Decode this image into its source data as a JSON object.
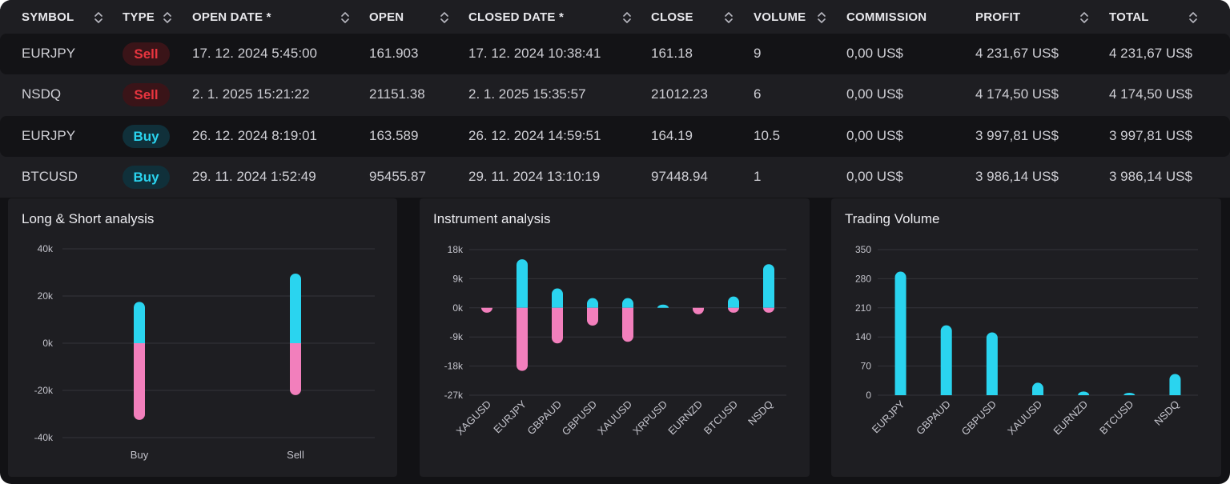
{
  "table": {
    "columns": [
      {
        "label": "SYMBOL"
      },
      {
        "label": "TYPE"
      },
      {
        "label": "OPEN DATE *"
      },
      {
        "label": "OPEN"
      },
      {
        "label": "CLOSED DATE *"
      },
      {
        "label": "CLOSE"
      },
      {
        "label": "VOLUME"
      },
      {
        "label": "COMMISSION"
      },
      {
        "label": "PROFIT"
      },
      {
        "label": "TOTAL"
      }
    ],
    "rows": [
      {
        "symbol": "EURJPY",
        "type": "Sell",
        "open_date": "17. 12. 2024 5:45:00",
        "open": "161.903",
        "closed_date": "17. 12. 2024 10:38:41",
        "close": "161.18",
        "volume": "9",
        "commission": "0,00 US$",
        "profit": "4 231,67 US$",
        "total": "4 231,67 US$"
      },
      {
        "symbol": "NSDQ",
        "type": "Sell",
        "open_date": "2. 1. 2025 15:21:22",
        "open": "21151.38",
        "closed_date": "2. 1. 2025 15:35:57",
        "close": "21012.23",
        "volume": "6",
        "commission": "0,00 US$",
        "profit": "4 174,50 US$",
        "total": "4 174,50 US$"
      },
      {
        "symbol": "EURJPY",
        "type": "Buy",
        "open_date": "26. 12. 2024 8:19:01",
        "open": "163.589",
        "closed_date": "26. 12. 2024 14:59:51",
        "close": "164.19",
        "volume": "10.5",
        "commission": "0,00 US$",
        "profit": "3 997,81 US$",
        "total": "3 997,81 US$"
      },
      {
        "symbol": "BTCUSD",
        "type": "Buy",
        "open_date": "29. 11. 2024 1:52:49",
        "open": "95455.87",
        "closed_date": "29. 11. 2024 13:10:19",
        "close": "97448.94",
        "volume": "1",
        "commission": "0,00 US$",
        "profit": "3 986,14 US$",
        "total": "3 986,14 US$"
      }
    ]
  },
  "colors": {
    "positive": "#2ad4ef",
    "negative": "#f27fbc",
    "sell_text": "#e8353f",
    "buy_text": "#2ad4ef"
  },
  "icons": {
    "sort": "sort-up-down-icon"
  },
  "chart_data": [
    {
      "type": "bar",
      "title": "Long & Short analysis",
      "categories": [
        "Buy",
        "Sell"
      ],
      "series": [
        {
          "values": [
            17500,
            29500
          ],
          "color": "#2ad4ef"
        },
        {
          "values": [
            -32500,
            -22000
          ],
          "color": "#f27fbc"
        }
      ],
      "ylim": [
        -40000,
        40000
      ],
      "yticks": [
        40000,
        20000,
        0,
        -20000,
        -40000
      ],
      "ytick_labels": [
        "40k",
        "20k",
        "0k",
        "-20k",
        "-40k"
      ],
      "grid": true,
      "stacked": true
    },
    {
      "type": "bar",
      "title": "Instrument analysis",
      "categories": [
        "XAGUSD",
        "EURJPY",
        "GBPAUD",
        "GBPUSD",
        "XAUUSD",
        "XRPUSD",
        "EURNZD",
        "BTCUSD",
        "NSDQ"
      ],
      "series": [
        {
          "values": [
            0,
            15000,
            6000,
            3000,
            3000,
            1000,
            0,
            3500,
            13500
          ],
          "color": "#2ad4ef"
        },
        {
          "values": [
            -1500,
            -19500,
            -11000,
            -5500,
            -10500,
            0,
            -2000,
            -1500,
            -1500
          ],
          "color": "#f27fbc"
        }
      ],
      "ylim": [
        -27000,
        18000
      ],
      "yticks": [
        18000,
        9000,
        0,
        -9000,
        -18000,
        -27000
      ],
      "ytick_labels": [
        "18k",
        "9k",
        "0k",
        "-9k",
        "-18k",
        "-27k"
      ],
      "grid": true,
      "stacked": true
    },
    {
      "type": "bar",
      "title": "Trading Volume",
      "categories": [
        "EURJPY",
        "GBPAUD",
        "GBPUSD",
        "XAUUSD",
        "EURNZD",
        "BTCUSD",
        "NSDQ"
      ],
      "series": [
        {
          "values": [
            297,
            168,
            151,
            30,
            9,
            3,
            51
          ],
          "color": "#2ad4ef"
        }
      ],
      "ylim": [
        0,
        350
      ],
      "yticks": [
        350,
        280,
        210,
        140,
        70,
        0
      ],
      "ytick_labels": [
        "350",
        "280",
        "210",
        "140",
        "70",
        "0"
      ],
      "grid": true
    }
  ]
}
